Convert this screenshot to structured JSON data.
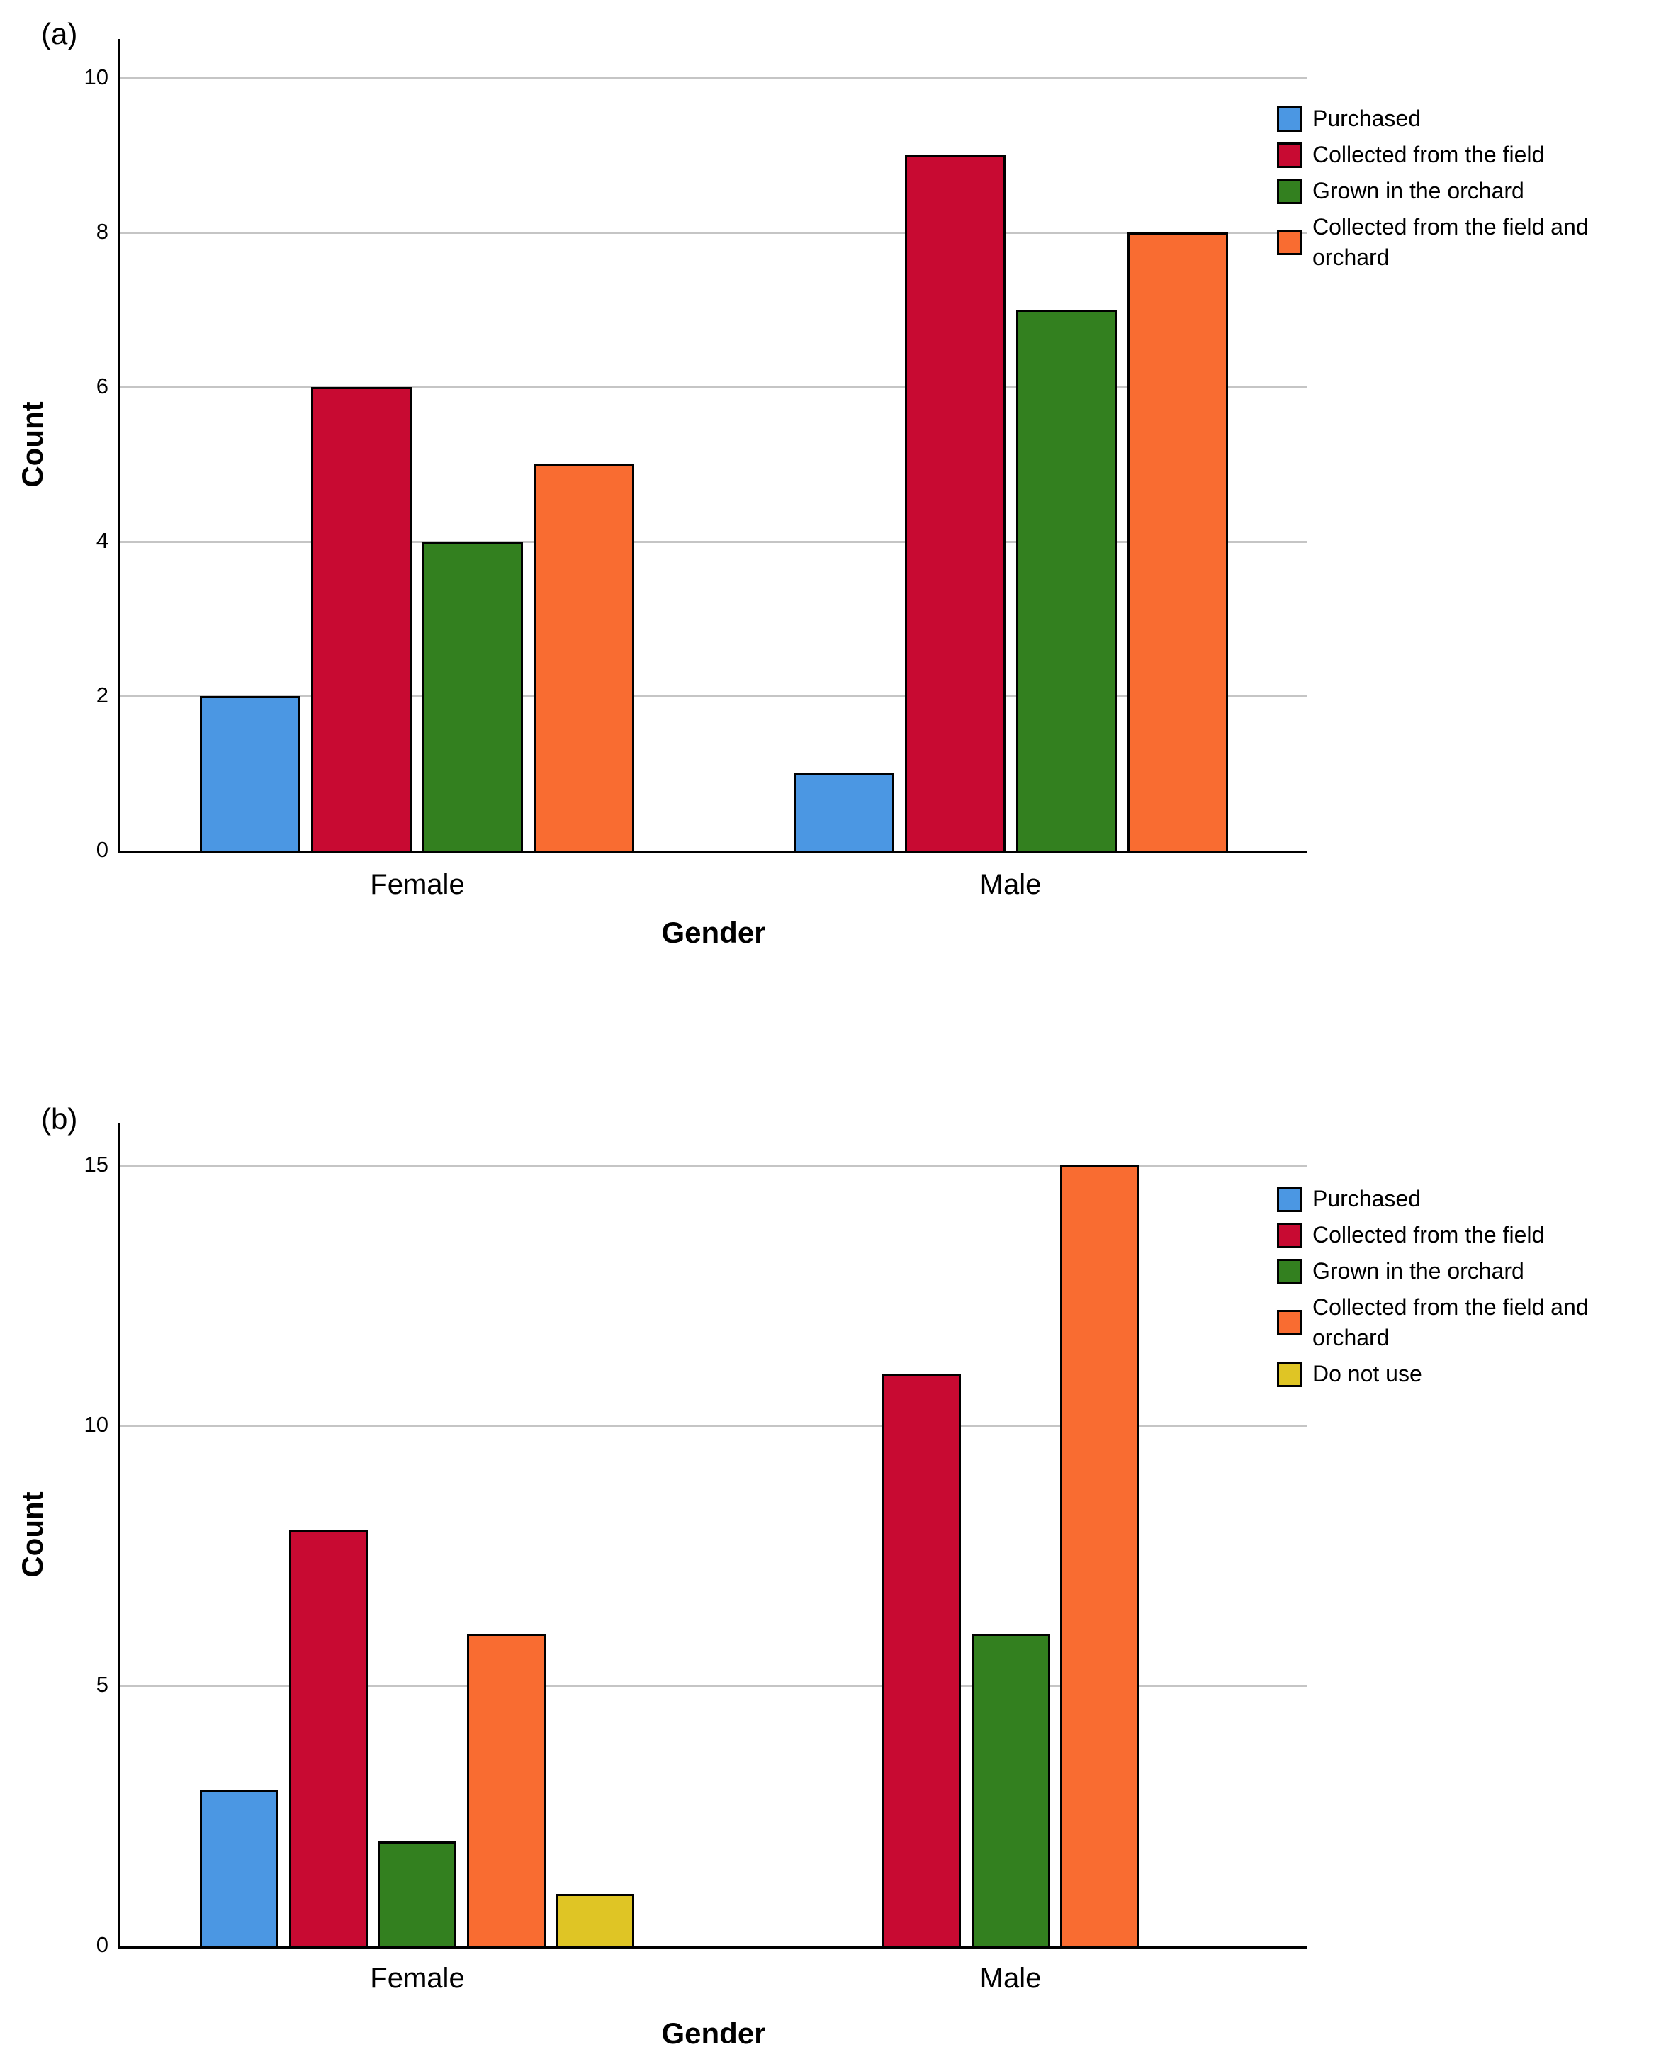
{
  "figure": {
    "description": "Two clustered bar charts of plant sourcing counts by gender",
    "panels": [
      "(a)",
      "(b)"
    ]
  },
  "chart_data": [
    {
      "id": "a",
      "type": "bar",
      "panel_label": "(a)",
      "title": "",
      "xlabel": "Gender",
      "ylabel": "Count",
      "categories": [
        "Female",
        "Male"
      ],
      "series": [
        {
          "name": "Purchased",
          "color": "#4B97E3",
          "values": [
            2,
            1
          ]
        },
        {
          "name": "Collected from the field",
          "color": "#C80A32",
          "values": [
            6,
            9
          ]
        },
        {
          "name": "Grown in the orchard",
          "color": "#33801F",
          "values": [
            4,
            7
          ]
        },
        {
          "name": "Collected from the field and orchard",
          "color": "#F96C31",
          "values": [
            5,
            8
          ]
        }
      ],
      "ylim": [
        0,
        10.5
      ],
      "yticks": [
        0,
        2,
        4,
        6,
        8,
        10
      ],
      "grid": true,
      "legend_position": "right",
      "gridline_color": "#c5c5c5",
      "axis_color": "#000000"
    },
    {
      "id": "b",
      "type": "bar",
      "panel_label": "(b)",
      "title": "",
      "xlabel": "Gender",
      "ylabel": "Count",
      "categories": [
        "Female",
        "Male"
      ],
      "series": [
        {
          "name": "Purchased",
          "color": "#4B97E3",
          "values": [
            3,
            0
          ]
        },
        {
          "name": "Collected from the field",
          "color": "#C80A32",
          "values": [
            8,
            11
          ]
        },
        {
          "name": "Grown in the orchard",
          "color": "#33801F",
          "values": [
            2,
            6
          ]
        },
        {
          "name": "Collected from the field and orchard",
          "color": "#F96C31",
          "values": [
            6,
            15
          ]
        },
        {
          "name": "Do not use",
          "color": "#DFC525",
          "values": [
            1,
            0
          ]
        }
      ],
      "ylim": [
        0,
        15.8
      ],
      "yticks": [
        0,
        5,
        10,
        15
      ],
      "grid": true,
      "legend_position": "right",
      "gridline_color": "#c5c5c5",
      "axis_color": "#000000"
    }
  ]
}
